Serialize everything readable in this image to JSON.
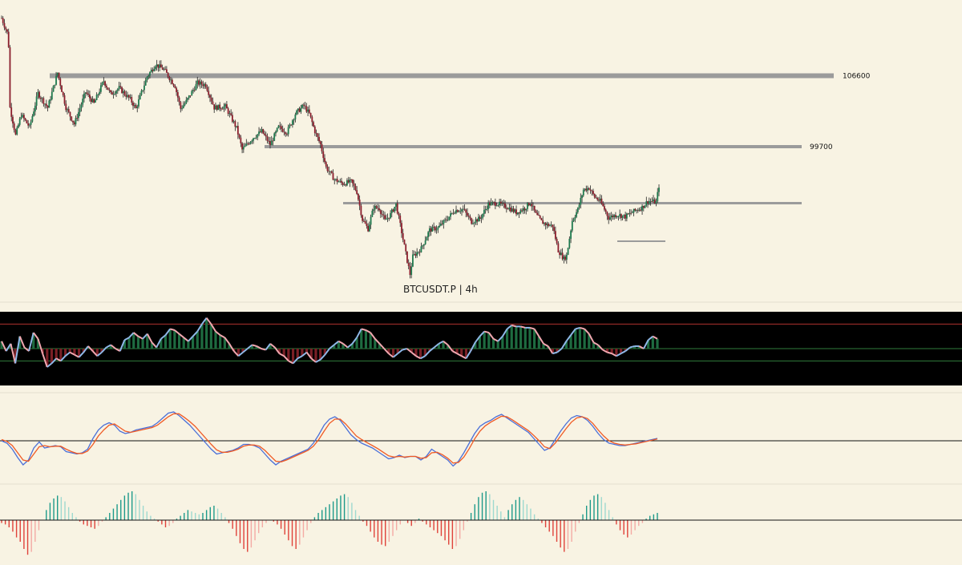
{
  "chart_data": [
    {
      "type": "candlestick",
      "symbol_label": "BTCUSDT.P | 4h",
      "colors": {
        "up": "#1e7a4e",
        "down": "#8b1e2c",
        "wick": "#222222",
        "level_line": "#9b9b9b",
        "background": "#f8f3e3"
      },
      "levels": [
        {
          "label": "106600",
          "price": 106600
        },
        {
          "label": "99700",
          "price": 99700
        },
        {
          "label": "",
          "price": 94200
        },
        {
          "label": "",
          "price": 90500
        }
      ],
      "price_path": [
        [
          0,
          112200
        ],
        [
          4,
          110800
        ],
        [
          5,
          109500
        ],
        [
          6,
          103500
        ],
        [
          10,
          100800
        ],
        [
          14,
          102800
        ],
        [
          20,
          101600
        ],
        [
          26,
          104900
        ],
        [
          33,
          103500
        ],
        [
          40,
          106900
        ],
        [
          46,
          103500
        ],
        [
          52,
          101900
        ],
        [
          60,
          105000
        ],
        [
          66,
          103900
        ],
        [
          73,
          106100
        ],
        [
          78,
          104800
        ],
        [
          84,
          105400
        ],
        [
          92,
          104300
        ],
        [
          96,
          103400
        ],
        [
          104,
          106500
        ],
        [
          110,
          107700
        ],
        [
          116,
          107200
        ],
        [
          124,
          105600
        ],
        [
          128,
          103400
        ],
        [
          132,
          104100
        ],
        [
          140,
          105900
        ],
        [
          146,
          105700
        ],
        [
          152,
          103500
        ],
        [
          160,
          103600
        ],
        [
          168,
          101500
        ],
        [
          172,
          99400
        ],
        [
          180,
          100600
        ],
        [
          186,
          101200
        ],
        [
          192,
          99900
        ],
        [
          198,
          101600
        ],
        [
          204,
          101100
        ],
        [
          210,
          102900
        ],
        [
          216,
          103700
        ],
        [
          220,
          102900
        ],
        [
          224,
          101200
        ],
        [
          228,
          99900
        ],
        [
          232,
          97700
        ],
        [
          238,
          96500
        ],
        [
          244,
          96100
        ],
        [
          250,
          96300
        ],
        [
          254,
          95300
        ],
        [
          258,
          92600
        ],
        [
          262,
          91700
        ],
        [
          266,
          93800
        ],
        [
          270,
          93700
        ],
        [
          274,
          92500
        ],
        [
          278,
          93100
        ],
        [
          282,
          94100
        ],
        [
          286,
          91400
        ],
        [
          290,
          88600
        ],
        [
          292,
          87300
        ],
        [
          294,
          89000
        ],
        [
          300,
          89800
        ],
        [
          306,
          91600
        ],
        [
          312,
          91800
        ],
        [
          318,
          92600
        ],
        [
          324,
          93500
        ],
        [
          330,
          93600
        ],
        [
          336,
          92400
        ],
        [
          342,
          92700
        ],
        [
          348,
          94100
        ],
        [
          354,
          94200
        ],
        [
          362,
          93800
        ],
        [
          368,
          93300
        ],
        [
          374,
          93700
        ],
        [
          378,
          94300
        ],
        [
          382,
          93100
        ],
        [
          386,
          92400
        ],
        [
          390,
          92100
        ],
        [
          394,
          92000
        ],
        [
          398,
          89600
        ],
        [
          402,
          88800
        ],
        [
          404,
          89100
        ],
        [
          408,
          92500
        ],
        [
          412,
          93600
        ],
        [
          416,
          95500
        ],
        [
          420,
          95700
        ],
        [
          424,
          94800
        ],
        [
          428,
          94400
        ],
        [
          434,
          92800
        ],
        [
          440,
          93100
        ],
        [
          446,
          92900
        ],
        [
          452,
          93400
        ],
        [
          458,
          93800
        ],
        [
          462,
          94400
        ],
        [
          464,
          94400
        ],
        [
          468,
          94300
        ],
        [
          470,
          95900
        ]
      ],
      "x_range": [
        0,
        545
      ],
      "ylim": [
        85900,
        113500
      ]
    },
    {
      "type": "oscillator",
      "ylim": [
        20,
        80
      ],
      "bands": [
        70,
        50,
        40
      ],
      "colors": {
        "background": "#000000",
        "band_top": "#b0332e",
        "band_mid": "#2f7d3b",
        "band_low": "#2f7d3b",
        "line_up": "#8fb8e8",
        "line_down": "#f2a7b0",
        "hist_up": "#1e6b40",
        "hist_down": "#7a1f26"
      },
      "values": [
        56,
        48,
        54,
        38,
        60,
        51,
        48,
        63,
        58,
        46,
        35,
        38,
        42,
        40,
        44,
        47,
        45,
        43,
        47,
        52,
        48,
        44,
        47,
        51,
        53,
        50,
        48,
        57,
        59,
        63,
        60,
        58,
        62,
        55,
        51,
        58,
        61,
        66,
        65,
        62,
        59,
        56,
        60,
        64,
        70,
        75,
        70,
        64,
        61,
        59,
        54,
        48,
        44,
        47,
        50,
        53,
        52,
        50,
        49,
        54,
        51,
        46,
        44,
        40,
        38,
        42,
        44,
        47,
        42,
        39,
        41,
        45,
        50,
        53,
        56,
        54,
        51,
        54,
        59,
        66,
        65,
        63,
        58,
        54,
        50,
        46,
        43,
        46,
        49,
        50,
        47,
        44,
        42,
        44,
        48,
        51,
        54,
        56,
        53,
        48,
        46,
        44,
        42,
        48,
        55,
        60,
        64,
        63,
        58,
        56,
        60,
        66,
        69,
        68,
        68,
        67,
        67,
        66,
        60,
        54,
        52,
        46,
        47,
        50,
        56,
        61,
        66,
        67,
        66,
        62,
        55,
        53,
        49,
        47,
        46,
        44,
        46,
        48,
        51,
        52,
        52,
        50,
        57,
        60,
        58
      ]
    },
    {
      "type": "line",
      "ylim": [
        -60,
        60
      ],
      "zero_line": true,
      "colors": {
        "fast": "#4a6fd8",
        "slow": "#f05a24",
        "zero": "#111111"
      },
      "series": [
        {
          "values": [
            0,
            -4,
            -14,
            -28,
            -40,
            -32,
            -12,
            -2,
            -12,
            -10,
            -8,
            -10,
            -18,
            -20,
            -22,
            -20,
            -14,
            4,
            18,
            26,
            30,
            26,
            16,
            12,
            14,
            18,
            20,
            22,
            24,
            30,
            38,
            46,
            48,
            42,
            34,
            26,
            16,
            6,
            -4,
            -14,
            -22,
            -20,
            -18,
            -16,
            -12,
            -6,
            -6,
            -8,
            -12,
            -22,
            -32,
            -40,
            -34,
            -30,
            -26,
            -22,
            -18,
            -14,
            -4,
            10,
            26,
            36,
            40,
            34,
            22,
            10,
            2,
            -4,
            -8,
            -12,
            -18,
            -24,
            -30,
            -28,
            -24,
            -28,
            -26,
            -26,
            -32,
            -26,
            -14,
            -20,
            -26,
            -32,
            -42,
            -34,
            -20,
            -4,
            12,
            24,
            30,
            34,
            40,
            44,
            38,
            32,
            26,
            20,
            14,
            4,
            -6,
            -16,
            -12,
            2,
            16,
            28,
            38,
            42,
            40,
            34,
            24,
            12,
            2,
            -4,
            -6,
            -8,
            -8,
            -6,
            -4,
            -2,
            0,
            2,
            4
          ]
        },
        {
          "values": [
            2,
            -1,
            -8,
            -20,
            -32,
            -34,
            -22,
            -10,
            -8,
            -10,
            -9,
            -9,
            -14,
            -18,
            -21,
            -21,
            -17,
            -6,
            8,
            18,
            26,
            28,
            22,
            16,
            14,
            16,
            18,
            20,
            22,
            26,
            33,
            40,
            45,
            45,
            39,
            32,
            24,
            14,
            4,
            -6,
            -15,
            -19,
            -19,
            -17,
            -14,
            -9,
            -7,
            -7,
            -9,
            -16,
            -25,
            -34,
            -35,
            -32,
            -28,
            -24,
            -20,
            -16,
            -9,
            2,
            16,
            29,
            36,
            36,
            28,
            18,
            8,
            2,
            -3,
            -8,
            -13,
            -19,
            -25,
            -27,
            -26,
            -27,
            -26,
            -26,
            -29,
            -28,
            -20,
            -19,
            -23,
            -29,
            -37,
            -36,
            -27,
            -13,
            3,
            16,
            25,
            31,
            36,
            41,
            40,
            35,
            29,
            23,
            17,
            9,
            0,
            -10,
            -13,
            -4,
            8,
            20,
            31,
            38,
            40,
            37,
            29,
            18,
            8,
            0,
            -4,
            -6,
            -7,
            -6,
            -5,
            -3,
            -1,
            1,
            3
          ]
        }
      ]
    },
    {
      "type": "bar",
      "ylim": [
        -60,
        60
      ],
      "zero_line": true,
      "colors": {
        "pos_strong": "#1d9a8a",
        "pos_weak": "#9ed9cf",
        "neg_strong": "#e0423a",
        "neg_weak": "#f4aaa4",
        "zero": "#111111"
      },
      "values": [
        -4,
        -6,
        -10,
        -16,
        -24,
        -30,
        -40,
        -48,
        -44,
        -30,
        -14,
        0,
        14,
        24,
        30,
        34,
        32,
        26,
        18,
        10,
        4,
        -2,
        -6,
        -8,
        -10,
        -12,
        -8,
        -2,
        4,
        10,
        16,
        22,
        28,
        34,
        38,
        40,
        36,
        28,
        20,
        12,
        6,
        2,
        -2,
        -6,
        -10,
        -8,
        -4,
        2,
        6,
        10,
        14,
        12,
        10,
        8,
        10,
        14,
        18,
        20,
        16,
        10,
        4,
        -4,
        -12,
        -22,
        -32,
        -40,
        -44,
        -38,
        -28,
        -18,
        -10,
        -4,
        0,
        -2,
        -6,
        -12,
        -20,
        -28,
        -36,
        -40,
        -34,
        -24,
        -14,
        -4,
        4,
        10,
        14,
        18,
        22,
        26,
        30,
        34,
        36,
        32,
        24,
        14,
        6,
        -2,
        -8,
        -16,
        -24,
        -30,
        -34,
        -36,
        -30,
        -22,
        -14,
        -6,
        0,
        -4,
        -8,
        -4,
        2,
        -2,
        -6,
        -10,
        -14,
        -18,
        -22,
        -28,
        -34,
        -40,
        -36,
        -26,
        -14,
        -2,
        10,
        22,
        32,
        38,
        40,
        36,
        28,
        20,
        12,
        4,
        14,
        22,
        28,
        32,
        28,
        22,
        16,
        8,
        2,
        -4,
        -10,
        -16,
        -22,
        -30,
        -38,
        -44,
        -40,
        -30,
        -16,
        -4,
        8,
        20,
        28,
        34,
        36,
        32,
        24,
        14,
        4,
        -6,
        -14,
        -20,
        -24,
        -20,
        -14,
        -8,
        -4,
        2,
        6,
        8,
        10
      ]
    }
  ]
}
